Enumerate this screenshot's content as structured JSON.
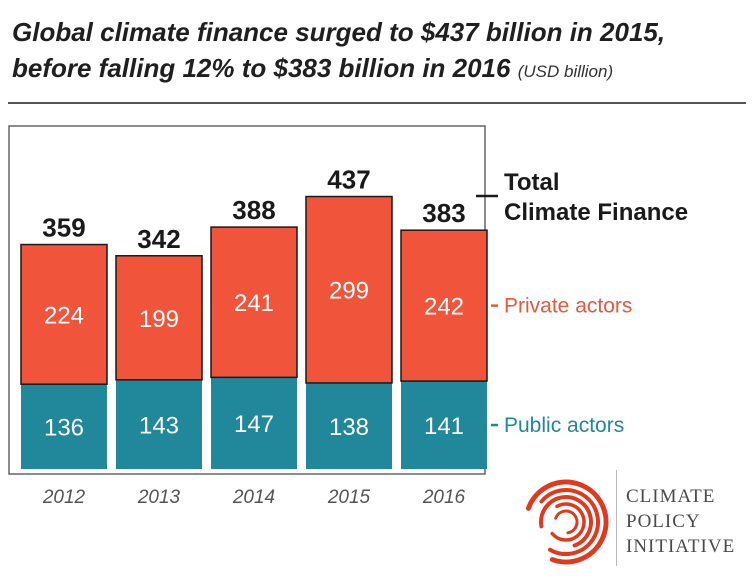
{
  "title": {
    "line1": "Global climate finance surged to $437 billion in 2015,",
    "line2": "before falling 12% to $383 billion in 2016",
    "unit": "(USD billion)"
  },
  "chart_data": {
    "type": "bar",
    "stacked": true,
    "categories": [
      "2012",
      "2013",
      "2014",
      "2015",
      "2016"
    ],
    "series": [
      {
        "name": "Public actors",
        "values": [
          136,
          143,
          147,
          138,
          141
        ],
        "color": "#20889a"
      },
      {
        "name": "Private actors",
        "values": [
          224,
          199,
          241,
          299,
          242
        ],
        "color": "#f0553b"
      }
    ],
    "totals": [
      359,
      342,
      388,
      437,
      383
    ],
    "total_label_line1": "Total",
    "total_label_line2": "Climate Finance",
    "legend_placement": "right",
    "grid": false
  },
  "logo": {
    "line1": "CLIMATE",
    "line2": "POLICY",
    "line3": "INITIATIVE",
    "color": "#e03a1e"
  }
}
